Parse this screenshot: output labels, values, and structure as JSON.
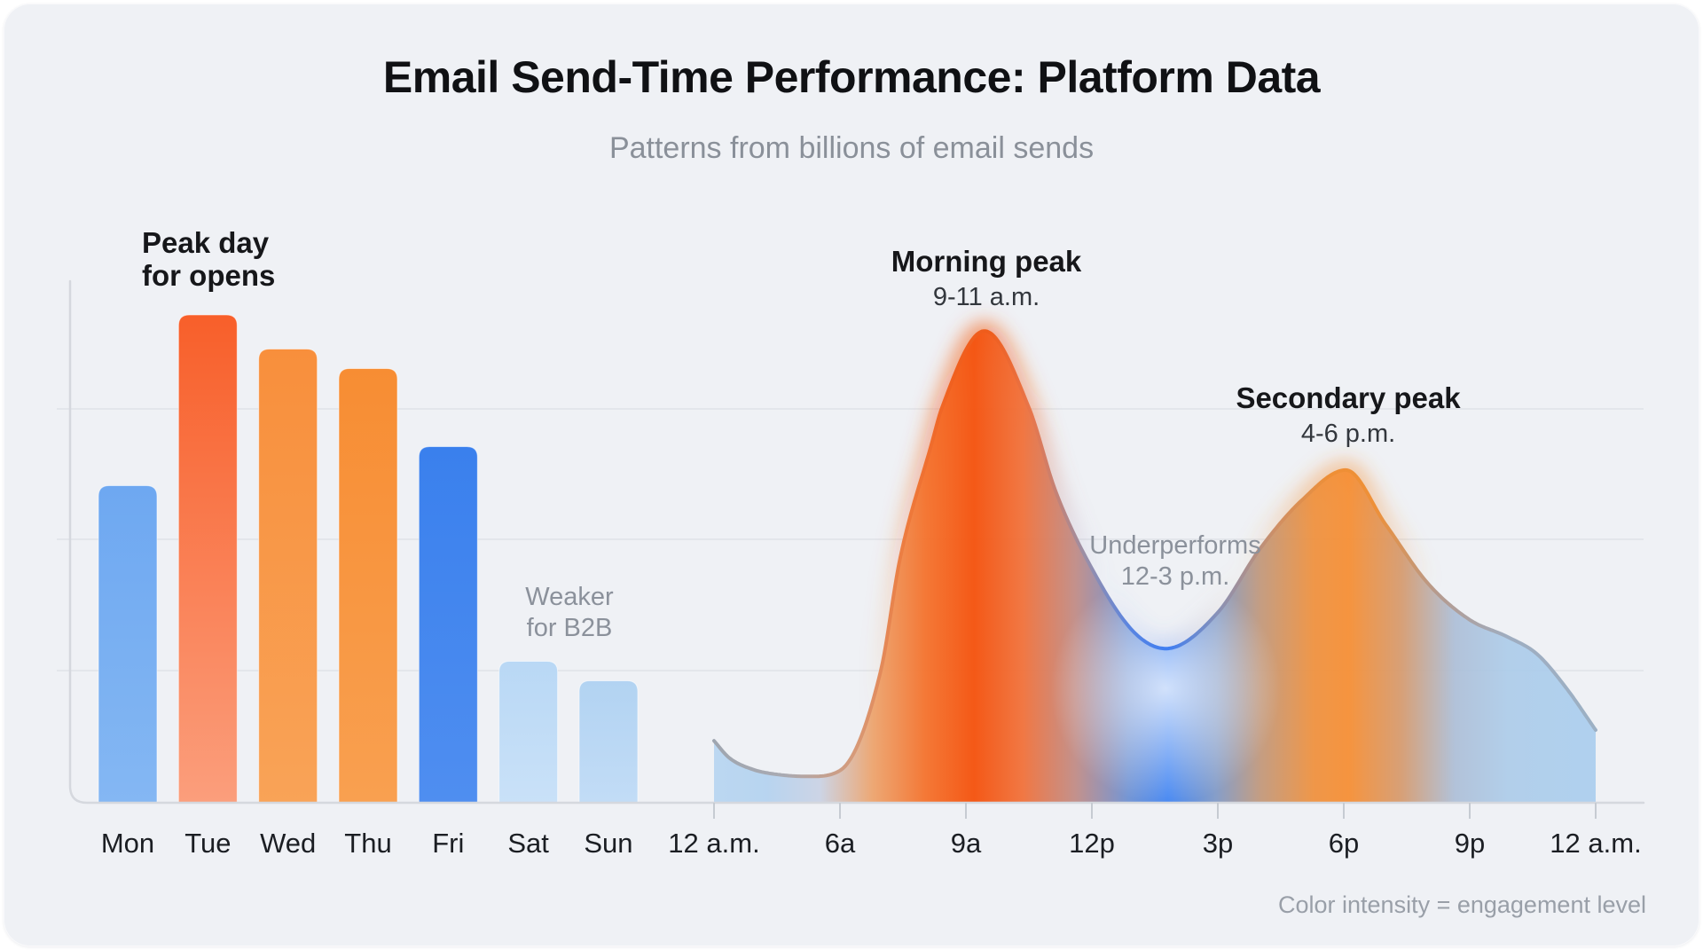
{
  "header": {
    "title": "Email Send-Time Performance: Platform Data",
    "subtitle": "Patterns from billions of email sends"
  },
  "footnote": "Color intensity = engagement level",
  "colors": {
    "card_background": "#eff1f5",
    "gridline": "#e3e6eb",
    "axis": "#d5d8de",
    "tick": "#c6cbd2",
    "peak_orange": "#f45410",
    "secondary_orange": "#f68f35",
    "low_blue": "#3f83f2",
    "weekend_blue": "#b9d8f5"
  },
  "chart_data": [
    {
      "type": "bar",
      "title": "",
      "categories": [
        "Mon",
        "Tue",
        "Wed",
        "Thu",
        "Fri",
        "Sat",
        "Sun"
      ],
      "values": [
        65,
        100,
        93,
        89,
        73,
        29,
        25
      ],
      "ylim": [
        0,
        100
      ],
      "units": "relative open engagement (axis unlabeled, estimated from bar heights)",
      "grid": true,
      "bar_colors": [
        [
          "#6ea8f1",
          "#84b7f3"
        ],
        [
          "#f85f2a",
          "#fb9e7c"
        ],
        [
          "#f88f3c",
          "#f9a357"
        ],
        [
          "#f78d33",
          "#f9a050"
        ],
        [
          "#3a80ed",
          "#4f8ef0"
        ],
        [
          "#b9d8f5",
          "#c9e1f8"
        ],
        [
          "#b2d3f2",
          "#c2dcf6"
        ]
      ],
      "annotations": [
        {
          "line1": "Peak day",
          "line2": "for opens",
          "refers_to": "Tue",
          "style": "bold-dark"
        },
        {
          "line1": "Weaker",
          "line2": "for B2B",
          "refers_to": "Sat-Sun",
          "style": "muted"
        }
      ]
    },
    {
      "type": "area",
      "title": "",
      "units": "relative engagement by hour of day (axis unlabeled, estimated)",
      "ylim": [
        0,
        100
      ],
      "legend": "color intensity encodes engagement level (orange = high, blue = low)",
      "x_ticks": [
        {
          "label": "12 a.m.",
          "hour": 0
        },
        {
          "label": "6a",
          "hour": 6
        },
        {
          "label": "9a",
          "hour": 9
        },
        {
          "label": "12p",
          "hour": 12
        },
        {
          "label": "3p",
          "hour": 15
        },
        {
          "label": "6p",
          "hour": 18
        },
        {
          "label": "9p",
          "hour": 21
        },
        {
          "label": "12 a.m.",
          "hour": 24
        }
      ],
      "x_layout_hint": "ticks are evenly spaced on screen although hour intervals differ (0-6h compressed)",
      "series": [
        {
          "name": "engagement",
          "points": [
            {
              "t": 0,
              "v": 12.7
            },
            {
              "t": 0.7,
              "v": 9.3
            },
            {
              "t": 1.8,
              "v": 6.9
            },
            {
              "t": 3.2,
              "v": 5.7
            },
            {
              "t": 4.6,
              "v": 5.4
            },
            {
              "t": 6.0,
              "v": 6.6
            },
            {
              "t": 6.97,
              "v": 27
            },
            {
              "t": 7.43,
              "v": 50
            },
            {
              "t": 8.18,
              "v": 73.5
            },
            {
              "t": 8.43,
              "v": 81
            },
            {
              "t": 9.44,
              "v": 96.7
            },
            {
              "t": 10.5,
              "v": 81
            },
            {
              "t": 11.13,
              "v": 64
            },
            {
              "t": 12,
              "v": 48
            },
            {
              "t": 13,
              "v": 35
            },
            {
              "t": 13.76,
              "v": 31.6
            },
            {
              "t": 15,
              "v": 39
            },
            {
              "t": 16,
              "v": 52
            },
            {
              "t": 17,
              "v": 62
            },
            {
              "t": 18.05,
              "v": 68.2
            },
            {
              "t": 19,
              "v": 57
            },
            {
              "t": 20,
              "v": 45
            },
            {
              "t": 21,
              "v": 37.5
            },
            {
              "t": 21.9,
              "v": 34
            },
            {
              "t": 22.6,
              "v": 30.5
            },
            {
              "t": 23.3,
              "v": 23.5
            },
            {
              "t": 24,
              "v": 14.9
            }
          ]
        }
      ],
      "annotations": [
        {
          "line1": "Morning peak",
          "line2": "9-11 a.m.",
          "style": "bold-dark"
        },
        {
          "line1": "Underperforms",
          "line2": "12-3 p.m.",
          "style": "muted"
        },
        {
          "line1": "Secondary peak",
          "line2": "4-6 p.m.",
          "style": "bold-dark"
        }
      ],
      "fill_gradient_stops": [
        [
          0.0,
          "#b7d5f1",
          0.92
        ],
        [
          0.06,
          "#b3d2ef",
          0.92
        ],
        [
          0.12,
          "#c9d2e4",
          0.92
        ],
        [
          0.18,
          "#eda36c",
          0.94
        ],
        [
          0.24,
          "#f4732e",
          0.96
        ],
        [
          0.295,
          "#f45410",
          0.97
        ],
        [
          0.35,
          "#f1713a",
          0.95
        ],
        [
          0.41,
          "#c08a84",
          0.93
        ],
        [
          0.47,
          "#6b8fd2",
          0.93
        ],
        [
          0.515,
          "#3f83f2",
          0.95
        ],
        [
          0.57,
          "#7e97c4",
          0.92
        ],
        [
          0.62,
          "#c19678",
          0.92
        ],
        [
          0.68,
          "#ef9240",
          0.95
        ],
        [
          0.72,
          "#f68f35",
          0.95
        ],
        [
          0.78,
          "#d59a6e",
          0.93
        ],
        [
          0.84,
          "#abbdd6",
          0.9
        ],
        [
          0.9,
          "#abcbe9",
          0.9
        ],
        [
          1.0,
          "#a9cdee",
          0.9
        ]
      ],
      "stroke_gradient_stops": [
        [
          0.0,
          "#9fa6b0",
          1
        ],
        [
          0.08,
          "#a9aab2",
          1
        ],
        [
          0.16,
          "#d79a78",
          1
        ],
        [
          0.22,
          "#ee7a3c",
          1
        ],
        [
          0.27,
          "#f0601f",
          1
        ],
        [
          0.31,
          "#ef5c1b",
          1
        ],
        [
          0.36,
          "#e8764b",
          1
        ],
        [
          0.42,
          "#9b8fa6",
          1
        ],
        [
          0.47,
          "#5b85e0",
          1
        ],
        [
          0.515,
          "#3f7ef2",
          1
        ],
        [
          0.57,
          "#8791b8",
          1
        ],
        [
          0.64,
          "#d18f62",
          1
        ],
        [
          0.7,
          "#ef8f35",
          1
        ],
        [
          0.75,
          "#ee9038",
          1
        ],
        [
          0.82,
          "#b59a8e",
          1
        ],
        [
          0.9,
          "#9fadc0",
          1
        ],
        [
          1.0,
          "#9cb0c4",
          1
        ]
      ],
      "glow_gradient_stops": [
        [
          0.0,
          "#f47828",
          0
        ],
        [
          0.18,
          "#f47828",
          0
        ],
        [
          0.245,
          "#f45a10",
          0.5
        ],
        [
          0.3,
          "#f45008",
          0.65
        ],
        [
          0.36,
          "#f4641e",
          0.45
        ],
        [
          0.44,
          "#648cf0",
          0
        ],
        [
          0.52,
          "#5082f5",
          0.3
        ],
        [
          0.6,
          "#f0963c",
          0
        ],
        [
          0.68,
          "#f69135",
          0.5
        ],
        [
          0.73,
          "#f69135",
          0.55
        ],
        [
          0.81,
          "#f6963c",
          0
        ],
        [
          1.0,
          "#f6963c",
          0
        ]
      ]
    }
  ]
}
